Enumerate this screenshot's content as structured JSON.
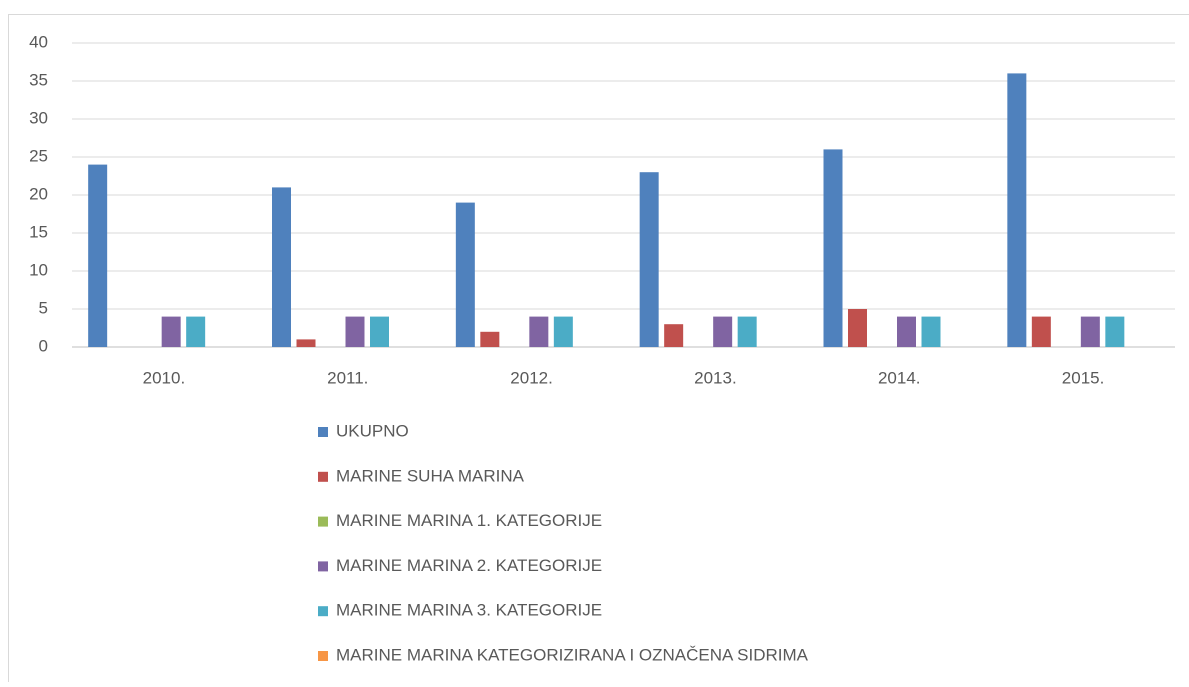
{
  "chart_data": {
    "type": "bar",
    "categories": [
      "2010.",
      "2011.",
      "2012.",
      "2013.",
      "2014.",
      "2015."
    ],
    "series": [
      {
        "name": "UKUPNO",
        "color": "#4f81bd",
        "values": [
          24,
          21,
          19,
          23,
          26,
          36
        ]
      },
      {
        "name": "MARINE SUHA MARINA",
        "color": "#c0504d",
        "values": [
          0,
          1,
          2,
          3,
          5,
          4
        ]
      },
      {
        "name": "MARINE MARINA 1. KATEGORIJE",
        "color": "#9bbb59",
        "values": [
          0,
          0,
          0,
          0,
          0,
          0
        ]
      },
      {
        "name": "MARINE MARINA 2. KATEGORIJE",
        "color": "#8064a2",
        "values": [
          4,
          4,
          4,
          4,
          4,
          4
        ]
      },
      {
        "name": "MARINE MARINA 3. KATEGORIJE",
        "color": "#4bacc6",
        "values": [
          4,
          4,
          4,
          4,
          4,
          4
        ]
      },
      {
        "name": "MARINE MARINA KATEGORIZIRANA I OZNAČENA SIDRIMA",
        "color": "#f79646",
        "values": [
          0,
          0,
          0,
          0,
          0,
          0
        ]
      }
    ],
    "ylim": [
      0,
      40
    ],
    "yticks": [
      0,
      5,
      10,
      15,
      20,
      25,
      30,
      35,
      40
    ],
    "grid": true,
    "legend": "bottom"
  }
}
